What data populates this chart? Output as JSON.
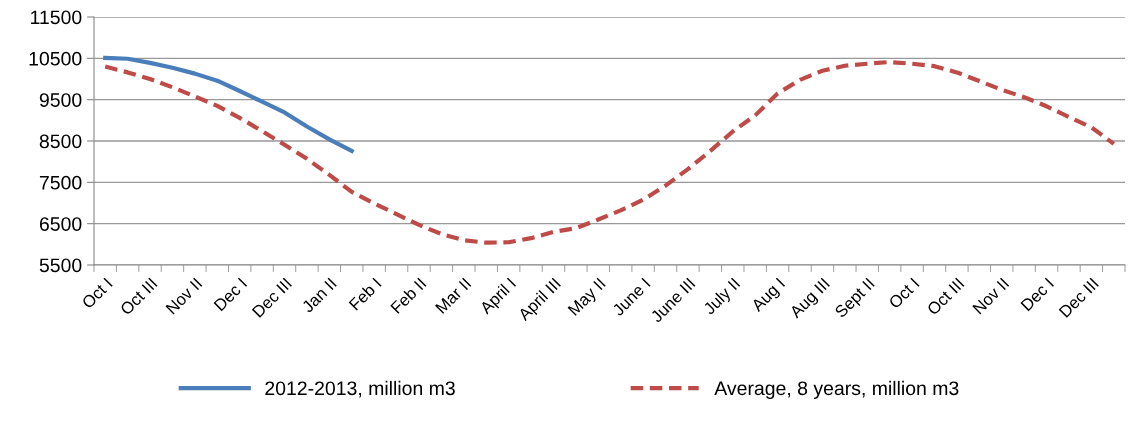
{
  "chart_data": {
    "type": "line",
    "categories": [
      "Oct I",
      null,
      "Oct III",
      null,
      "Nov II",
      null,
      "Dec I",
      null,
      "Dec III",
      null,
      "Jan II",
      null,
      "Feb I",
      null,
      "Feb II",
      null,
      "Mar II",
      null,
      "April I",
      null,
      "April III",
      null,
      "May II",
      null,
      "June I",
      null,
      "June III",
      null,
      "July II",
      null,
      "Aug I",
      null,
      "Aug III",
      null,
      "Sept II",
      null,
      "Oct I",
      null,
      "Oct III",
      null,
      "Nov II",
      null,
      "Dec I",
      null,
      "Dec III",
      null
    ],
    "series": [
      {
        "name": "2012-2013, million m3",
        "color": "#4a7ebb",
        "line_style": "solid",
        "values": [
          10510,
          10490,
          10390,
          10270,
          10130,
          9960,
          9710,
          9450,
          9190,
          8850,
          8540,
          8260,
          null,
          null,
          null,
          null,
          null,
          null,
          null,
          null,
          null,
          null,
          null,
          null,
          null,
          null,
          null,
          null,
          null,
          null,
          null,
          null,
          null,
          null,
          null,
          null,
          null,
          null,
          null,
          null,
          null,
          null,
          null,
          null,
          null,
          null
        ]
      },
      {
        "name": "Average, 8 years, million m3",
        "color": "#be4b48",
        "line_style": "dashed",
        "values": [
          10300,
          10160,
          10000,
          9800,
          9580,
          9350,
          9060,
          8740,
          8410,
          8070,
          7680,
          7270,
          6990,
          6730,
          6470,
          6250,
          6100,
          6040,
          6050,
          6150,
          6300,
          6390,
          6600,
          6820,
          7080,
          7420,
          7820,
          8260,
          8730,
          9120,
          9650,
          9980,
          10200,
          10320,
          10370,
          10410,
          10370,
          10310,
          10160,
          9950,
          9740,
          9560,
          9340,
          9080,
          8830,
          8430
        ]
      }
    ],
    "ylim": [
      5500,
      11500
    ],
    "yticks": [
      5500,
      6500,
      7500,
      8500,
      9500,
      10500,
      11500
    ],
    "grid": "y",
    "legend": "bottom",
    "marker": "none"
  }
}
